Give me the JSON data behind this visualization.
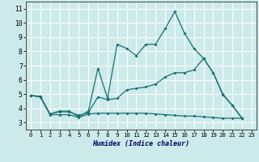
{
  "title": "",
  "xlabel": "Humidex (Indice chaleur)",
  "bg_color": "#cceaea",
  "grid_color": "#ffffff",
  "line_color": "#1a7070",
  "xlim": [
    -0.5,
    23.5
  ],
  "ylim": [
    2.5,
    11.5
  ],
  "xticks": [
    0,
    1,
    2,
    3,
    4,
    5,
    6,
    7,
    8,
    9,
    10,
    11,
    12,
    13,
    14,
    15,
    16,
    17,
    18,
    19,
    20,
    21,
    22,
    23
  ],
  "yticks": [
    3,
    4,
    5,
    6,
    7,
    8,
    9,
    10,
    11
  ],
  "x": [
    0,
    1,
    2,
    3,
    4,
    5,
    6,
    7,
    8,
    9,
    10,
    11,
    12,
    13,
    14,
    15,
    16,
    17,
    18,
    19,
    20,
    21,
    22
  ],
  "line1": [
    4.9,
    4.8,
    3.6,
    3.8,
    3.8,
    3.4,
    3.8,
    6.8,
    4.7,
    8.5,
    8.2,
    7.7,
    8.5,
    8.5,
    9.6,
    10.8,
    9.3,
    8.2,
    7.5,
    6.5,
    5.0,
    4.2,
    3.3
  ],
  "line2": [
    4.9,
    4.85,
    3.6,
    3.75,
    3.75,
    3.5,
    3.7,
    4.8,
    4.6,
    4.7,
    5.3,
    5.4,
    5.5,
    5.7,
    6.2,
    6.5,
    6.5,
    6.7,
    7.5,
    6.5,
    4.95,
    4.2,
    3.3
  ],
  "line3": [
    4.9,
    4.8,
    3.55,
    3.55,
    3.55,
    3.35,
    3.6,
    3.65,
    3.65,
    3.65,
    3.65,
    3.65,
    3.65,
    3.6,
    3.55,
    3.5,
    3.45,
    3.45,
    3.4,
    3.35,
    3.3,
    3.3,
    3.3
  ]
}
